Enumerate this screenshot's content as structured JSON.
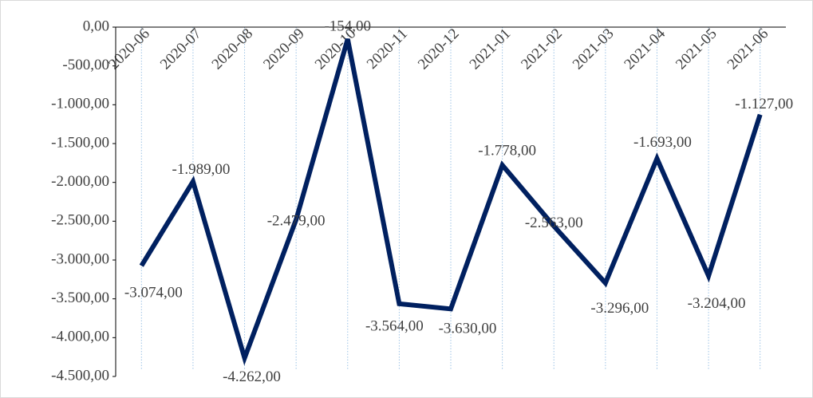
{
  "chart_data": {
    "type": "line",
    "categories": [
      "2020-06",
      "2020-07",
      "2020-08",
      "2020-09",
      "2020-10",
      "2020-11",
      "2020-12",
      "2021-01",
      "2021-02",
      "2021-03",
      "2021-04",
      "2021-05",
      "2021-06"
    ],
    "series": [
      {
        "color": "#002060",
        "values": [
          -3074,
          -1989,
          -4262,
          -2479,
          -154,
          -3564,
          -3630,
          -1778,
          -2563,
          -3296,
          -1693,
          -3204,
          -1127
        ],
        "value_labels": [
          "-3.074,00",
          "-1.989,00",
          "-4.262,00",
          "-2.479,00",
          "-154,00",
          "-3.564,00",
          "-3.630,00",
          "-1.778,00",
          "-2.563,00",
          "-3.296,00",
          "-1.693,00",
          "-3.204,00",
          "-1.127,00"
        ]
      }
    ],
    "ylim": [
      -4500,
      0
    ],
    "yticks": [
      {
        "value": 0,
        "label": "0,00"
      },
      {
        "value": -500,
        "label": "-500,00"
      },
      {
        "value": -1000,
        "label": "-1.000,00"
      },
      {
        "value": -1500,
        "label": "-1.500,00"
      },
      {
        "value": -2000,
        "label": "-2.000,00"
      },
      {
        "value": -2500,
        "label": "-2.500,00"
      },
      {
        "value": -3000,
        "label": "-3.000,00"
      },
      {
        "value": -3500,
        "label": "-3.500,00"
      },
      {
        "value": -4000,
        "label": "-4.000,00"
      },
      {
        "value": -4500,
        "label": "-4.500,00"
      }
    ],
    "xgrid": true
  }
}
